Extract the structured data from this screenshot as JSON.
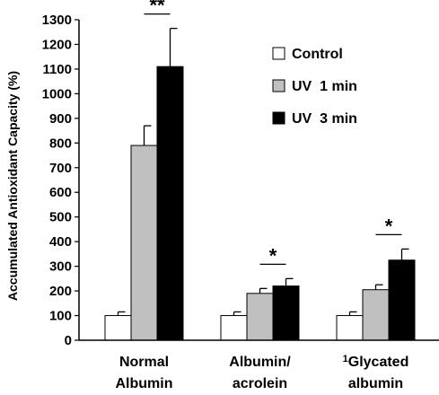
{
  "chart_data": {
    "type": "bar",
    "title": "",
    "ylabel": "Accumulated Antioxidant Capacity (%)",
    "xlabel": "",
    "ylim": [
      0,
      1300
    ],
    "yticks": [
      0,
      100,
      200,
      300,
      400,
      500,
      600,
      700,
      800,
      900,
      1000,
      1100,
      1200,
      1300
    ],
    "grid": false,
    "legend_position": "top-right",
    "categories": [
      {
        "line1": "Normal",
        "line2": "Albumin",
        "sup": ""
      },
      {
        "line1": "Albumin/",
        "line2": "acrolein",
        "sup": ""
      },
      {
        "line1": "Glycated",
        "line2": "albumin",
        "sup": "1"
      }
    ],
    "series": [
      {
        "name": "Control",
        "color": "#ffffff",
        "values": [
          100,
          100,
          100
        ],
        "errors": [
          15,
          15,
          15
        ]
      },
      {
        "name": "UV  1 min",
        "color": "#c0c0c0",
        "values": [
          790,
          190,
          205
        ],
        "errors": [
          80,
          20,
          20
        ]
      },
      {
        "name": "UV  3 min",
        "color": "#000000",
        "values": [
          1110,
          220,
          325
        ],
        "errors": [
          155,
          30,
          45
        ]
      }
    ],
    "significance": [
      {
        "category_index": 0,
        "label": "**"
      },
      {
        "category_index": 1,
        "label": "*"
      },
      {
        "category_index": 2,
        "label": "*"
      }
    ]
  }
}
